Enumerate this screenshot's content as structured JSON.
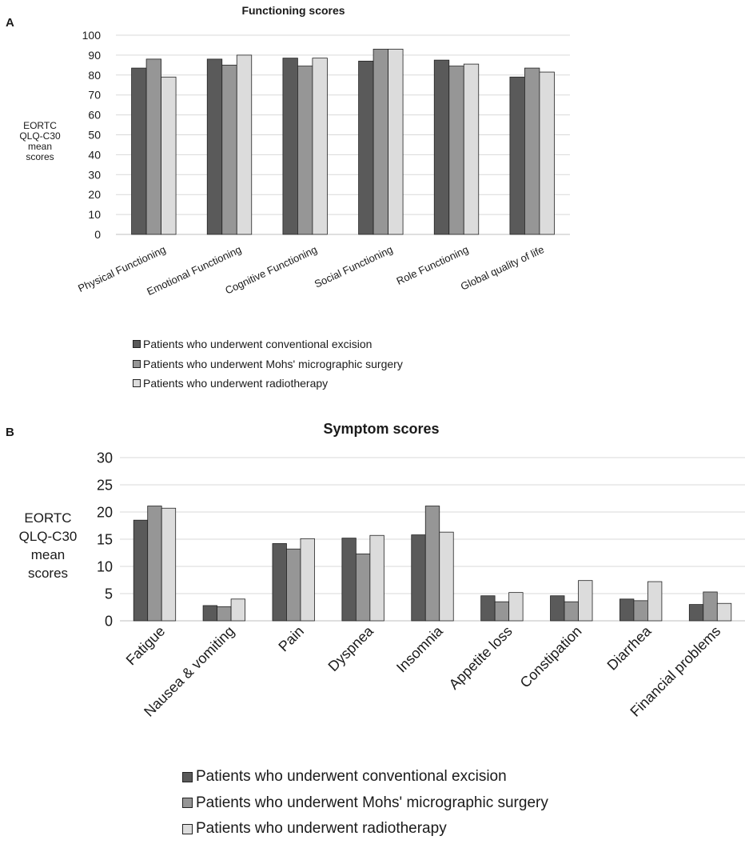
{
  "panel_labels": {
    "a": "A",
    "b": "B"
  },
  "colors": {
    "conventional_excision": "#5a5a5a",
    "mohs_surgery": "#969696",
    "radiotherapy": "#dcdcdc",
    "gridline": "#d9d9d9",
    "bar_outline": "#222222"
  },
  "chart_data": [
    {
      "type": "bar",
      "title": "Functioning scores",
      "ylabel": [
        "EORTC",
        "QLQ-C30",
        "mean",
        "scores"
      ],
      "ylim": [
        0,
        100
      ],
      "yticks": [
        0,
        10,
        20,
        30,
        40,
        50,
        60,
        70,
        80,
        90,
        100
      ],
      "grid": true,
      "legend_position": "bottom",
      "categories": [
        "Physical Functioning",
        "Emotional Functioning",
        "Cognitive Functioning",
        "Social Functioning",
        "Role Functioning",
        "Global quality of life"
      ],
      "series": [
        {
          "name": "Patients who underwent conventional excision",
          "values": [
            83.5,
            88,
            88.5,
            87,
            87.5,
            79
          ]
        },
        {
          "name": "Patients who underwent Mohs' micrographic surgery",
          "values": [
            88,
            85,
            84.5,
            93,
            84.5,
            83.5
          ]
        },
        {
          "name": "Patients who underwent radiotherapy",
          "values": [
            79,
            90,
            88.5,
            93,
            85.5,
            81.5
          ]
        }
      ]
    },
    {
      "type": "bar",
      "title": "Symptom scores",
      "ylabel": [
        "EORTC",
        "QLQ-C30",
        "mean",
        "scores"
      ],
      "ylim": [
        0,
        30
      ],
      "yticks": [
        0,
        5,
        10,
        15,
        20,
        25,
        30
      ],
      "grid": true,
      "legend_position": "bottom",
      "categories": [
        "Fatigue",
        "Nausea & vomiting",
        "Pain",
        "Dyspnea",
        "Insomnia",
        "Appetite loss",
        "Constipation",
        "Diarrhea",
        "Financial problems"
      ],
      "series": [
        {
          "name": "Patients who underwent conventional excision",
          "values": [
            18.5,
            2.8,
            14.2,
            15.2,
            15.8,
            4.6,
            4.6,
            4.0,
            3.0
          ]
        },
        {
          "name": "Patients who underwent Mohs' micrographic surgery",
          "values": [
            21.1,
            2.6,
            13.2,
            12.3,
            21.1,
            3.5,
            3.5,
            3.7,
            5.3
          ]
        },
        {
          "name": "Patients who underwent radiotherapy",
          "values": [
            20.7,
            4.0,
            15.1,
            15.7,
            16.3,
            5.2,
            7.4,
            7.2,
            3.2
          ]
        }
      ]
    }
  ]
}
